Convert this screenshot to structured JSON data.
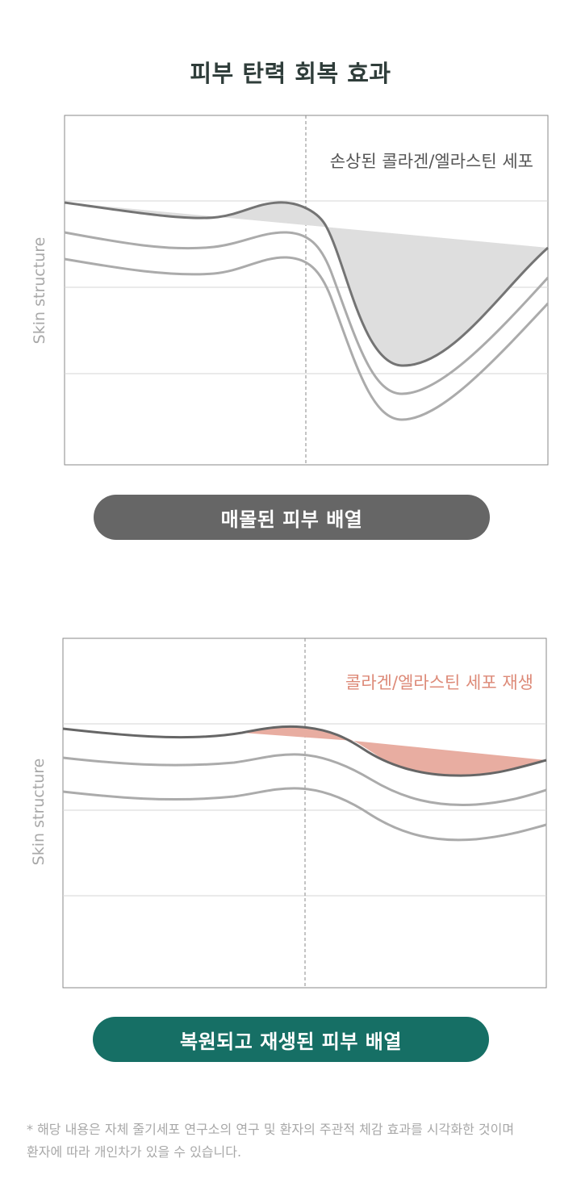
{
  "title": "피부 탄력 회복 효과",
  "panels": [
    {
      "annotation": "손상된 콜라겐/엘라스틴 세포",
      "y_axis_label": "Skin structure",
      "caption": "매몰된 피부 배열",
      "colors": {
        "annotation": "#555555",
        "fill": "#dedede",
        "top_line": "#747474",
        "lines": "#ababab",
        "caption_bg": "#666666"
      }
    },
    {
      "annotation": "콜라겐/엘라스틴 세포 재생",
      "y_axis_label": "Skin structure",
      "caption": "복원되고 재생된 피부 배열",
      "colors": {
        "annotation": "#dd8a78",
        "fill": "#e8ada1",
        "top_line": "#666666",
        "lines": "#ababab",
        "caption_bg": "#166f65"
      }
    }
  ],
  "footnote": {
    "line1": "* 해당 내용은 자체 줄기세포 연구소의 연구 및 환자의 주관적 체감 효과를 시각화한 것이며",
    "line2": "환자에 따라 개인차가 있을 수 있습니다."
  }
}
